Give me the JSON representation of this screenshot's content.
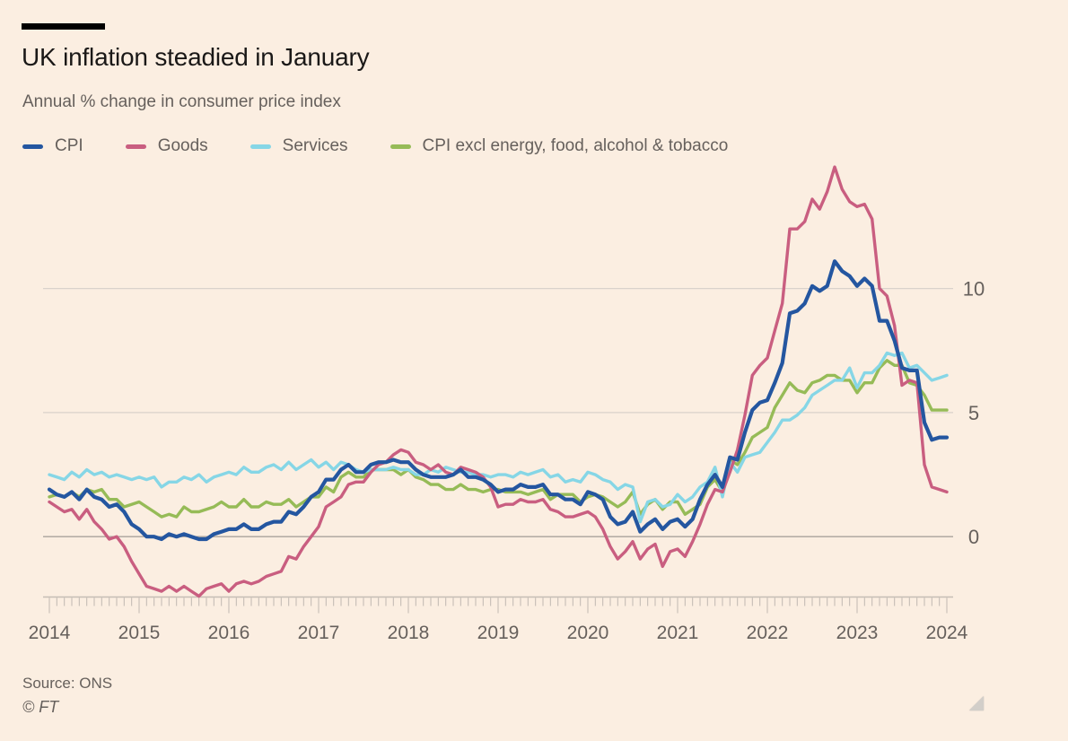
{
  "chart_data": {
    "type": "line",
    "title": "UK inflation steadied in January",
    "subtitle": "Annual % change in consumer price index",
    "xlabel": "",
    "ylabel": "Annual % change",
    "frequency": "monthly",
    "x_start": "2014-01",
    "x_end": "2024-01",
    "x_tick_labels": [
      "2014",
      "2015",
      "2016",
      "2017",
      "2018",
      "2019",
      "2020",
      "2021",
      "2022",
      "2023",
      "2024"
    ],
    "y_ticks": [
      0,
      5,
      10
    ],
    "ylim": [
      -2.6,
      15.3
    ],
    "grid": true,
    "legend_position": "top",
    "series": [
      {
        "name": "CPI excl energy, food, alcohol & tobacco",
        "color": "#96bb57",
        "emphasis": false,
        "values": [
          1.6,
          1.7,
          1.6,
          1.8,
          1.6,
          1.9,
          1.8,
          1.9,
          1.5,
          1.5,
          1.2,
          1.3,
          1.4,
          1.2,
          1.0,
          0.8,
          0.9,
          0.8,
          1.2,
          1.0,
          1.0,
          1.1,
          1.2,
          1.4,
          1.2,
          1.2,
          1.5,
          1.2,
          1.2,
          1.4,
          1.3,
          1.3,
          1.5,
          1.2,
          1.4,
          1.6,
          1.6,
          2.0,
          1.8,
          2.4,
          2.6,
          2.4,
          2.4,
          2.7,
          2.7,
          2.7,
          2.7,
          2.5,
          2.7,
          2.4,
          2.3,
          2.1,
          2.1,
          1.9,
          1.9,
          2.1,
          1.9,
          1.9,
          1.8,
          1.9,
          1.9,
          1.8,
          1.8,
          1.8,
          1.7,
          1.8,
          1.9,
          1.5,
          1.7,
          1.7,
          1.7,
          1.4,
          1.6,
          1.7,
          1.6,
          1.4,
          1.2,
          1.4,
          1.8,
          0.9,
          1.3,
          1.5,
          1.1,
          1.4,
          1.4,
          0.9,
          1.1,
          1.3,
          2.0,
          2.3,
          1.8,
          3.1,
          2.9,
          3.4,
          4.0,
          4.2,
          4.4,
          5.2,
          5.7,
          6.2,
          5.9,
          5.8,
          6.2,
          6.3,
          6.5,
          6.5,
          6.3,
          6.3,
          5.8,
          6.2,
          6.2,
          6.8,
          7.1,
          6.9,
          6.9,
          6.2,
          6.1,
          5.7,
          5.1,
          5.1,
          5.1
        ]
      },
      {
        "name": "Services",
        "color": "#86d6e6",
        "emphasis": false,
        "values": [
          2.5,
          2.4,
          2.3,
          2.6,
          2.4,
          2.7,
          2.5,
          2.6,
          2.4,
          2.5,
          2.4,
          2.3,
          2.4,
          2.3,
          2.4,
          2.0,
          2.2,
          2.2,
          2.4,
          2.3,
          2.5,
          2.2,
          2.4,
          2.5,
          2.6,
          2.5,
          2.8,
          2.6,
          2.6,
          2.8,
          2.9,
          2.7,
          3.0,
          2.7,
          2.9,
          3.1,
          2.8,
          3.0,
          2.7,
          3.0,
          2.9,
          2.7,
          2.6,
          2.7,
          2.7,
          2.7,
          2.8,
          2.7,
          2.7,
          2.5,
          2.5,
          2.7,
          2.6,
          2.8,
          2.7,
          2.6,
          2.6,
          2.5,
          2.5,
          2.4,
          2.5,
          2.5,
          2.4,
          2.6,
          2.5,
          2.6,
          2.7,
          2.4,
          2.5,
          2.2,
          2.3,
          2.2,
          2.6,
          2.5,
          2.3,
          2.2,
          1.9,
          2.1,
          2.0,
          0.6,
          1.4,
          1.5,
          1.2,
          1.3,
          1.7,
          1.4,
          1.6,
          2.0,
          2.2,
          2.8,
          1.6,
          3.0,
          2.6,
          3.2,
          3.3,
          3.4,
          3.8,
          4.2,
          4.7,
          4.7,
          4.9,
          5.2,
          5.7,
          5.9,
          6.1,
          6.3,
          6.3,
          6.8,
          6.0,
          6.6,
          6.6,
          6.9,
          7.4,
          7.3,
          7.4,
          6.8,
          6.9,
          6.6,
          6.3,
          6.4,
          6.5
        ]
      },
      {
        "name": "Goods",
        "color": "#c95e80",
        "emphasis": false,
        "values": [
          1.4,
          1.2,
          1.0,
          1.1,
          0.7,
          1.1,
          0.6,
          0.3,
          -0.1,
          0.0,
          -0.4,
          -1.0,
          -1.5,
          -2.0,
          -2.1,
          -2.2,
          -2.0,
          -2.2,
          -2.0,
          -2.2,
          -2.4,
          -2.1,
          -2.0,
          -1.9,
          -2.2,
          -1.9,
          -1.8,
          -1.9,
          -1.8,
          -1.6,
          -1.5,
          -1.4,
          -0.8,
          -0.9,
          -0.4,
          0.0,
          0.4,
          1.2,
          1.4,
          1.6,
          2.1,
          2.2,
          2.2,
          2.6,
          2.9,
          3.0,
          3.3,
          3.5,
          3.4,
          3.0,
          2.9,
          2.7,
          2.9,
          2.6,
          2.5,
          2.8,
          2.7,
          2.6,
          2.4,
          2.0,
          1.2,
          1.3,
          1.3,
          1.5,
          1.4,
          1.4,
          1.5,
          1.1,
          1.0,
          0.8,
          0.8,
          0.9,
          1.0,
          0.8,
          0.3,
          -0.4,
          -0.9,
          -0.6,
          -0.2,
          -0.9,
          -0.5,
          -0.3,
          -1.2,
          -0.6,
          -0.5,
          -0.8,
          -0.2,
          0.5,
          1.3,
          1.9,
          1.8,
          2.6,
          3.5,
          4.9,
          6.5,
          6.9,
          7.2,
          8.3,
          9.4,
          12.4,
          12.4,
          12.7,
          13.6,
          13.2,
          13.9,
          14.9,
          14.0,
          13.5,
          13.3,
          13.4,
          12.8,
          10.0,
          9.7,
          8.5,
          6.1,
          6.3,
          6.2,
          2.9,
          2.0,
          1.9,
          1.8
        ]
      },
      {
        "name": "CPI",
        "color": "#2456a0",
        "emphasis": true,
        "values": [
          1.9,
          1.7,
          1.6,
          1.8,
          1.5,
          1.9,
          1.6,
          1.5,
          1.2,
          1.3,
          1.0,
          0.5,
          0.3,
          0.0,
          0.0,
          -0.1,
          0.1,
          0.0,
          0.1,
          0.0,
          -0.1,
          -0.1,
          0.1,
          0.2,
          0.3,
          0.3,
          0.5,
          0.3,
          0.3,
          0.5,
          0.6,
          0.6,
          1.0,
          0.9,
          1.2,
          1.6,
          1.8,
          2.3,
          2.3,
          2.7,
          2.9,
          2.6,
          2.6,
          2.9,
          3.0,
          3.0,
          3.1,
          3.0,
          3.0,
          2.7,
          2.5,
          2.4,
          2.4,
          2.4,
          2.5,
          2.7,
          2.4,
          2.4,
          2.3,
          2.1,
          1.8,
          1.9,
          1.9,
          2.1,
          2.0,
          2.0,
          2.1,
          1.7,
          1.7,
          1.5,
          1.5,
          1.3,
          1.8,
          1.7,
          1.5,
          0.8,
          0.5,
          0.6,
          1.0,
          0.2,
          0.5,
          0.7,
          0.3,
          0.6,
          0.7,
          0.4,
          0.7,
          1.5,
          2.1,
          2.5,
          2.0,
          3.2,
          3.1,
          4.2,
          5.1,
          5.4,
          5.5,
          6.2,
          7.0,
          9.0,
          9.1,
          9.4,
          10.1,
          9.9,
          10.1,
          11.1,
          10.7,
          10.5,
          10.1,
          10.4,
          10.1,
          8.7,
          8.7,
          7.9,
          6.8,
          6.7,
          6.7,
          4.6,
          3.9,
          4.0,
          4.0
        ]
      }
    ]
  },
  "footer": {
    "source": "Source: ONS",
    "copyright": "© FT"
  },
  "colors": {
    "background": "#fbeee1",
    "title_text": "#1a1817",
    "secondary_text": "#66605c",
    "gridline": "#d9d2cb",
    "zero_line": "#aaa39c",
    "axis": "#c5bdb5"
  }
}
